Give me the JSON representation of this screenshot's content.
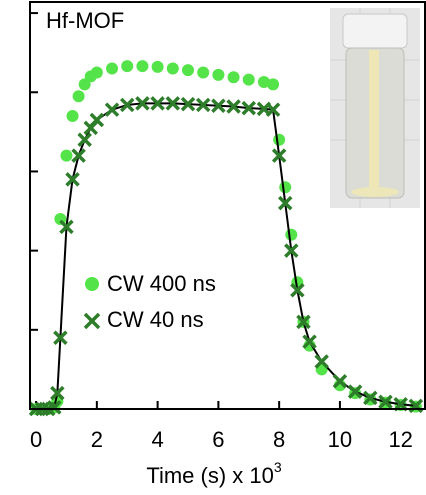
{
  "chart_data": {
    "type": "scatter",
    "title": "Hf-MOF",
    "xlabel": "Time (s) x 10",
    "xlabel_exponent": "3",
    "x": [
      0,
      0.2,
      0.4,
      0.6,
      0.7,
      0.8,
      1.0,
      1.2,
      1.4,
      1.6,
      1.8,
      2.0,
      2.5,
      3,
      3.5,
      4,
      4.5,
      5,
      5.5,
      6,
      6.5,
      7,
      7.5,
      7.8,
      8.0,
      8.2,
      8.4,
      8.6,
      8.8,
      9.0,
      9.4,
      10,
      10.5,
      11,
      11.5,
      12,
      12.5
    ],
    "series": [
      {
        "name": "CW 400 ns",
        "color": "#55e34a",
        "marker": "circle",
        "values": [
          0,
          0,
          0,
          0.02,
          0.1,
          2.4,
          3.2,
          3.7,
          3.95,
          4.1,
          4.2,
          4.25,
          4.3,
          4.33,
          4.33,
          4.32,
          4.3,
          4.28,
          4.25,
          4.22,
          4.19,
          4.16,
          4.13,
          4.1,
          3.4,
          2.8,
          2.2,
          1.6,
          1.1,
          0.8,
          0.5,
          0.3,
          0.2,
          0.12,
          0.08,
          0.05,
          0.03
        ]
      },
      {
        "name": "CW 40 ns",
        "color": "#2e7d2a",
        "marker": "x",
        "line_color": "#000000",
        "values": [
          0,
          0,
          0,
          0.02,
          0.2,
          0.9,
          2.3,
          2.9,
          3.2,
          3.4,
          3.55,
          3.65,
          3.78,
          3.84,
          3.86,
          3.86,
          3.86,
          3.85,
          3.84,
          3.83,
          3.82,
          3.8,
          3.79,
          3.78,
          3.2,
          2.6,
          2.0,
          1.5,
          1.1,
          0.85,
          0.6,
          0.35,
          0.22,
          0.14,
          0.09,
          0.06,
          0.04
        ]
      }
    ],
    "xlim": [
      -0.2,
      12.8
    ],
    "xticks": [
      0,
      2,
      4,
      6,
      8,
      10,
      12
    ],
    "ylim": [
      0,
      5.14
    ],
    "yticks": [
      0,
      1,
      2,
      3,
      4,
      5
    ]
  }
}
